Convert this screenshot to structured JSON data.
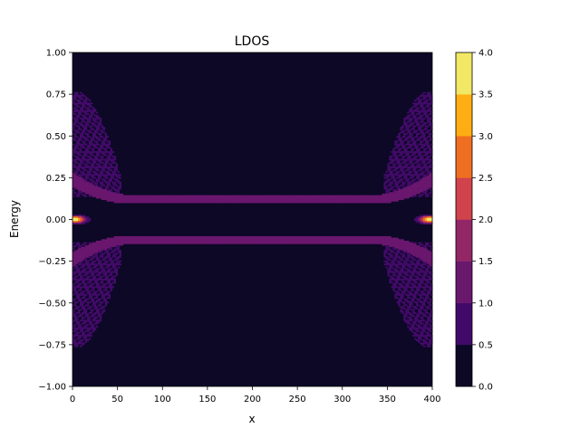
{
  "chart_data": {
    "type": "heatmap",
    "title": "LDOS",
    "xlabel": "x",
    "ylabel": "Energy",
    "xlim": [
      0,
      400
    ],
    "ylim": [
      -1.0,
      1.0
    ],
    "x_ticks": [
      "0",
      "50",
      "100",
      "150",
      "200",
      "250",
      "300",
      "350",
      "400"
    ],
    "y_ticks": [
      "−1.00",
      "−0.75",
      "−0.50",
      "−0.25",
      "0.00",
      "0.25",
      "0.50",
      "0.75",
      "1.00"
    ],
    "x_tick_values": [
      0,
      50,
      100,
      150,
      200,
      250,
      300,
      350,
      400
    ],
    "y_tick_values": [
      -1.0,
      -0.75,
      -0.5,
      -0.25,
      0.0,
      0.25,
      0.5,
      0.75,
      1.0
    ],
    "colorbar": {
      "levels": [
        0.0,
        0.5,
        1.0,
        1.5,
        2.0,
        2.5,
        3.0,
        3.5,
        4.0
      ],
      "tick_labels": [
        "0.0",
        "0.5",
        "1.0",
        "1.5",
        "2.0",
        "2.5",
        "3.0",
        "3.5",
        "4.0"
      ],
      "colors": [
        "#0c0826",
        "#420a68",
        "#6a176e",
        "#932667",
        "#d1434c",
        "#ef6e21",
        "#fcae12",
        "#f2e866"
      ]
    },
    "features": {
      "band_energy": 0.12,
      "band_value": 1.2,
      "band_flat_range": [
        60,
        340
      ],
      "edge_states": [
        {
          "x": 3,
          "energy": 0.0,
          "peak_value": 3.8
        },
        {
          "x": 397,
          "energy": 0.0,
          "peak_value": 3.8
        }
      ],
      "fan_energy_range": [
        0.12,
        0.76
      ],
      "fan_x_range_left": [
        0,
        55
      ],
      "fan_x_range_right": [
        345,
        400
      ],
      "fan_value": 0.8
    }
  }
}
